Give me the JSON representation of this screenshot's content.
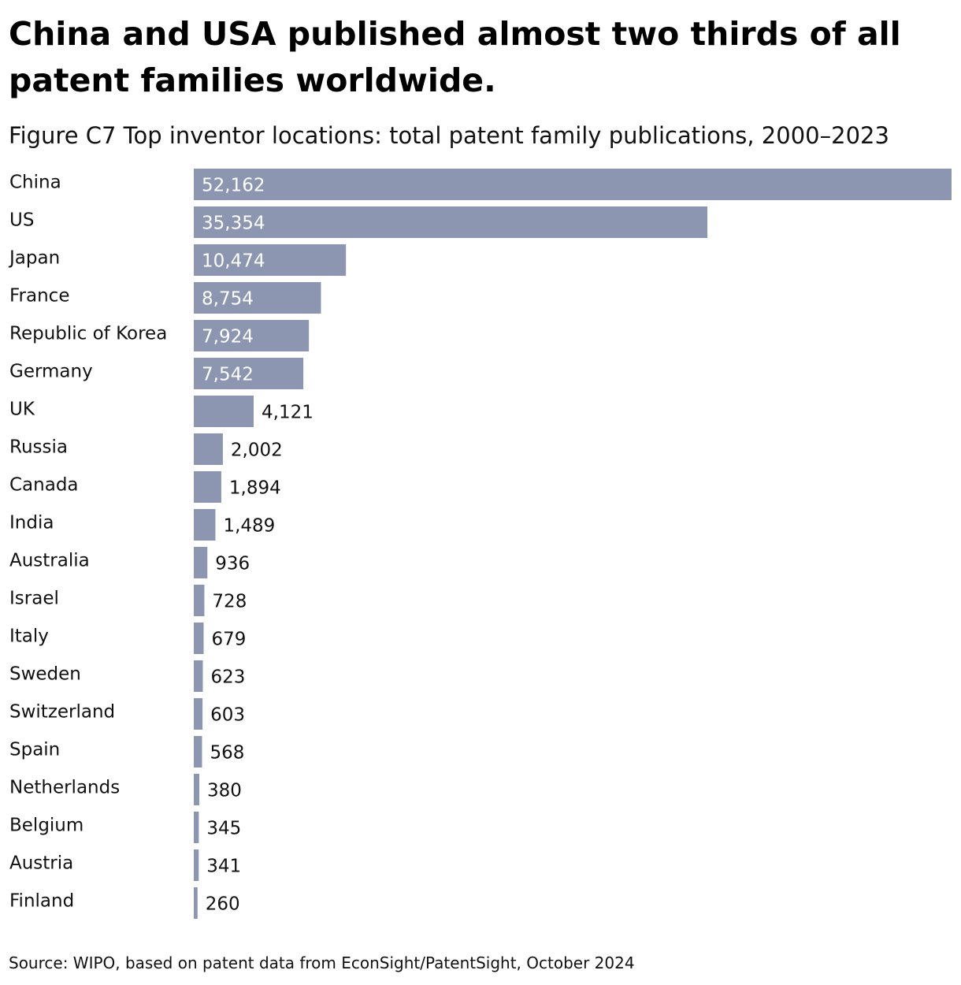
{
  "title": "China and USA published almost two thirds of all patent families worldwide.",
  "subtitle": "Figure C7 Top inventor locations: total patent family publications, 2000–2023",
  "source": "Source: WIPO, based on patent data from EconSight/PatentSight, October 2024",
  "colors": {
    "bar": "#8c96b0"
  },
  "chart_data": {
    "type": "bar",
    "orientation": "horizontal",
    "categories": [
      "China",
      "US",
      "Japan",
      "France",
      "Republic of Korea",
      "Germany",
      "UK",
      "Russia",
      "Canada",
      "India",
      "Australia",
      "Israel",
      "Italy",
      "Sweden",
      "Switzerland",
      "Spain",
      "Netherlands",
      "Belgium",
      "Austria",
      "Finland"
    ],
    "values": [
      52162,
      35354,
      10474,
      8754,
      7924,
      7542,
      4121,
      2002,
      1894,
      1489,
      936,
      728,
      679,
      623,
      603,
      568,
      380,
      345,
      341,
      260
    ],
    "value_labels": [
      "52,162",
      "35,354",
      "10,474",
      "8,754",
      "7,924",
      "7,542",
      "4,121",
      "2,002",
      "1,894",
      "1,489",
      "936",
      "728",
      "679",
      "623",
      "603",
      "568",
      "380",
      "345",
      "341",
      "260"
    ],
    "xlim": [
      0,
      52162
    ],
    "grid": false,
    "legend": "none"
  }
}
